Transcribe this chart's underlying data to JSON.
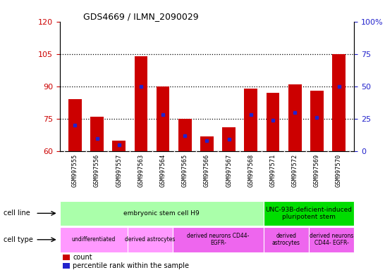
{
  "title": "GDS4669 / ILMN_2090029",
  "samples": [
    "GSM997555",
    "GSM997556",
    "GSM997557",
    "GSM997563",
    "GSM997564",
    "GSM997565",
    "GSM997566",
    "GSM997567",
    "GSM997568",
    "GSM997571",
    "GSM997572",
    "GSM997569",
    "GSM997570"
  ],
  "count_values": [
    84,
    76,
    65,
    104,
    90,
    75,
    67,
    71,
    89,
    87,
    91,
    88,
    105
  ],
  "percentile_values": [
    20,
    10,
    5,
    50,
    28,
    12,
    8,
    9,
    28,
    24,
    30,
    26,
    50
  ],
  "ylim_left": [
    60,
    120
  ],
  "ylim_right": [
    0,
    100
  ],
  "yticks_left": [
    60,
    75,
    90,
    105,
    120
  ],
  "yticks_right": [
    0,
    25,
    50,
    75,
    100
  ],
  "bar_color": "#cc0000",
  "dot_color": "#2222cc",
  "bar_bottom": 60,
  "cell_line_groups": [
    {
      "label": "embryonic stem cell H9",
      "start": 0,
      "end": 9,
      "color": "#aaffaa"
    },
    {
      "label": "UNC-93B-deficient-induced\npluripotent stem",
      "start": 9,
      "end": 13,
      "color": "#00dd00"
    }
  ],
  "cell_type_groups": [
    {
      "label": "undifferentiated",
      "start": 0,
      "end": 3,
      "color": "#ff99ff"
    },
    {
      "label": "derived astrocytes",
      "start": 3,
      "end": 5,
      "color": "#ff99ff"
    },
    {
      "label": "derived neurons CD44-\nEGFR-",
      "start": 5,
      "end": 9,
      "color": "#ee66ee"
    },
    {
      "label": "derived\nastrocytes",
      "start": 9,
      "end": 11,
      "color": "#ee66ee"
    },
    {
      "label": "derived neurons\nCD44- EGFR-",
      "start": 11,
      "end": 13,
      "color": "#ee66ee"
    }
  ],
  "legend_count_color": "#cc0000",
  "legend_pct_color": "#2222cc",
  "ytick_label_color_left": "#cc0000",
  "ytick_label_color_right": "#2222cc",
  "grid_dotted_values": [
    75,
    90,
    105
  ],
  "bar_width": 0.6,
  "plot_bg": "#ffffff",
  "tick_bg": "#dddddd"
}
